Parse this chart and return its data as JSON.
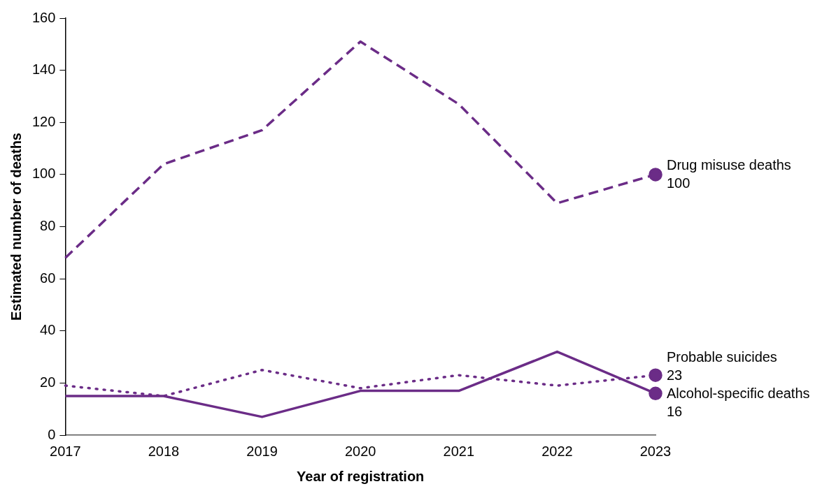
{
  "chart_data": {
    "type": "line",
    "xlabel": "Year of registration",
    "ylabel": "Estimated number of deaths",
    "categories": [
      "2017",
      "2018",
      "2019",
      "2020",
      "2021",
      "2022",
      "2023"
    ],
    "ylim": [
      0,
      160
    ],
    "yticks": [
      0,
      20,
      40,
      60,
      80,
      100,
      120,
      140,
      160
    ],
    "grid": false,
    "legend": false,
    "series": [
      {
        "name": "Drug misuse deaths",
        "color": "#6b2c87",
        "line_style": "dashed",
        "values": [
          68,
          104,
          117,
          151,
          127,
          89,
          100
        ],
        "value_labels": [
          null,
          null,
          null,
          null,
          null,
          null,
          "100"
        ]
      },
      {
        "name": "Probable suicides",
        "color": "#6b2c87",
        "line_style": "dotted",
        "values": [
          19,
          15,
          25,
          18,
          23,
          19,
          23
        ],
        "value_labels": [
          null,
          null,
          null,
          null,
          null,
          null,
          "23"
        ]
      },
      {
        "name": "Alcohol-specific deaths",
        "color": "#6b2c87",
        "line_style": "solid",
        "values": [
          15,
          15,
          7,
          17,
          17,
          32,
          16
        ],
        "value_labels": [
          null,
          null,
          null,
          null,
          null,
          null,
          "16"
        ]
      }
    ]
  }
}
